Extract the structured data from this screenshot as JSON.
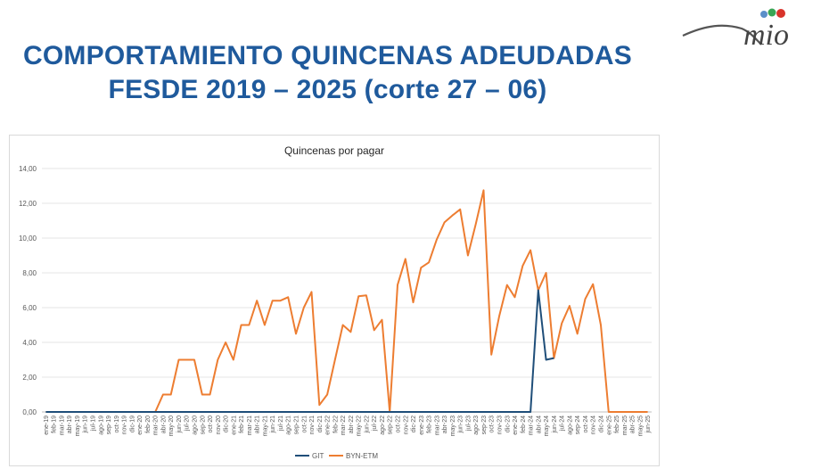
{
  "header": {
    "title_line1": "COMPORTAMIENTO QUINCENAS ADEUDADAS",
    "title_line2": "FESDE 2019 – 2025 (corte 27 – 06)",
    "title_color": "#1f5a9c",
    "logo_text": "mio",
    "logo_dot_colors": [
      "#5b8fc9",
      "#3aa655",
      "#d9342b"
    ]
  },
  "chart_data": {
    "type": "line",
    "title": "Quincenas por pagar",
    "xlabel": "",
    "ylabel": "",
    "ylim": [
      0,
      14
    ],
    "yticks": [
      "0,00",
      "2,00",
      "4,00",
      "6,00",
      "8,00",
      "10,00",
      "12,00",
      "14,00"
    ],
    "ytick_values": [
      0,
      2,
      4,
      6,
      8,
      10,
      12,
      14
    ],
    "grid": true,
    "legend_position": "bottom",
    "categories": [
      "ene-19",
      "feb-19",
      "mar-19",
      "abr-19",
      "may-19",
      "jun-19",
      "jul-19",
      "ago-19",
      "sep-19",
      "oct-19",
      "nov-19",
      "dic-19",
      "ene-20",
      "feb-20",
      "mar-20",
      "abr-20",
      "may-20",
      "jun-20",
      "jul-20",
      "ago-20",
      "sep-20",
      "oct-20",
      "nov-20",
      "dic-20",
      "ene-21",
      "feb-21",
      "mar-21",
      "abr-21",
      "may-21",
      "jun-21",
      "jul-21",
      "ago-21",
      "sep-21",
      "oct-21",
      "nov-21",
      "dic-21",
      "ene-22",
      "feb-22",
      "mar-22",
      "abr-22",
      "may-22",
      "jun-22",
      "jul-22",
      "ago-22",
      "sep-22",
      "oct-22",
      "nov-22",
      "dic-22",
      "ene-23",
      "feb-23",
      "mar-23",
      "abr-23",
      "may-23",
      "jun-23",
      "jul-23",
      "ago-23",
      "sep-23",
      "oct-23",
      "nov-23",
      "dic-23",
      "ene-24",
      "feb-24",
      "mar-24",
      "abr-24",
      "may-24",
      "jun-24",
      "jul-24",
      "ago-24",
      "sep-24",
      "oct-24",
      "nov-24",
      "dic-24",
      "ene-25",
      "feb-25",
      "mar-25",
      "abr-25",
      "may-25",
      "jun-25"
    ],
    "series": [
      {
        "name": "GIT",
        "color": "#1f4e79",
        "values": [
          0,
          0,
          0,
          0,
          0,
          0,
          0,
          0,
          0,
          0,
          0,
          0,
          0,
          0,
          0,
          0,
          0,
          0,
          0,
          0,
          0,
          0,
          0,
          0,
          0,
          0,
          0,
          0,
          0,
          0,
          0,
          0,
          0,
          0,
          0,
          0,
          0,
          0,
          0,
          0,
          0,
          0,
          0,
          0,
          0,
          0,
          0,
          0,
          0,
          0,
          0,
          0,
          0,
          0,
          0,
          0,
          0,
          0,
          0,
          0,
          0,
          0,
          0,
          7.0,
          3.0,
          3.1,
          null,
          null,
          null,
          null,
          null,
          null,
          null,
          null,
          null,
          null,
          null,
          null
        ]
      },
      {
        "name": "BYN-ETM",
        "color": "#ed7d31",
        "values": [
          0,
          0,
          0,
          0,
          0,
          0,
          0,
          0,
          0,
          0,
          0,
          0,
          0,
          0,
          0,
          1.0,
          1.0,
          3.0,
          3.0,
          3.0,
          1.0,
          1.0,
          3.0,
          4.0,
          3.0,
          5.0,
          5.0,
          6.4,
          5.0,
          6.4,
          6.4,
          6.6,
          4.5,
          6.0,
          6.9,
          0.4,
          1.0,
          3.0,
          5.0,
          4.6,
          6.65,
          6.7,
          4.7,
          5.3,
          0,
          7.3,
          8.8,
          6.3,
          8.3,
          8.6,
          9.9,
          10.9,
          11.3,
          11.65,
          9.0,
          10.8,
          12.75,
          3.3,
          5.5,
          7.3,
          6.6,
          8.4,
          9.3,
          7.0,
          8.0,
          3.1,
          5.1,
          6.1,
          4.5,
          6.5,
          7.35,
          5.0,
          0,
          0,
          0,
          0,
          0,
          0
        ]
      }
    ]
  }
}
